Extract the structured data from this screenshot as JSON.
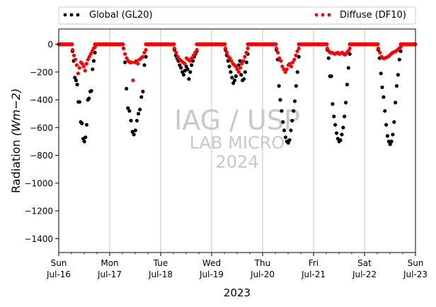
{
  "chart_data": {
    "type": "scatter",
    "xlabel": "2023",
    "ylabel": "Radiation",
    "ylabel_unit": "(Wm−2)",
    "xlim": [
      0,
      7
    ],
    "ylim": [
      -1500,
      110
    ],
    "yticks": [
      0,
      -200,
      -400,
      -600,
      -800,
      -1000,
      -1200,
      -1400
    ],
    "xticks": [
      {
        "x": 0,
        "day": "Sun",
        "date": "Jul-16"
      },
      {
        "x": 1,
        "day": "Mon",
        "date": "Jul-17"
      },
      {
        "x": 2,
        "day": "Tue",
        "date": "Jul-18"
      },
      {
        "x": 3,
        "day": "Wed",
        "date": "Jul-19"
      },
      {
        "x": 4,
        "day": "Thu",
        "date": "Jul-20"
      },
      {
        "x": 5,
        "day": "Fri",
        "date": "Jul-21"
      },
      {
        "x": 6,
        "day": "Sat",
        "date": "Jul-22"
      },
      {
        "x": 7,
        "day": "Sun",
        "date": "Jul-23"
      }
    ],
    "grid": "x",
    "legend": "top",
    "watermark": [
      "IAG / USP",
      "LAB MICRO",
      "2024"
    ],
    "series": [
      {
        "name": "Global (GL20)",
        "color": "#000000",
        "days": [
          {
            "start": 0.27,
            "end": 0.71,
            "values": [
              -50,
              -120,
              -240,
              -260,
              -290,
              -415,
              -415,
              -560,
              -570,
              -680,
              -700,
              -670,
              -580,
              -400,
              -390,
              -340,
              -335,
              -180,
              -120,
              -60
            ]
          },
          {
            "start": 1.27,
            "end": 1.71,
            "values": [
              -30,
              -130,
              -320,
              -460,
              -480,
              -550,
              -630,
              -650,
              -620,
              -550,
              -500,
              -470,
              -380,
              -340,
              -150,
              -90
            ]
          },
          {
            "start": 2.27,
            "end": 2.71,
            "values": [
              -40,
              -80,
              -100,
              -120,
              -150,
              -170,
              -200,
              -220,
              -190,
              -160,
              -180,
              -250,
              -200,
              -150,
              -120,
              -90,
              -70,
              -50
            ]
          },
          {
            "start": 3.27,
            "end": 3.71,
            "values": [
              -40,
              -80,
              -120,
              -160,
              -200,
              -240,
              -280,
              -260,
              -230,
              -180,
              -150,
              -120,
              -220,
              -260,
              -250,
              -200,
              -130,
              -70
            ]
          },
          {
            "start": 4.27,
            "end": 4.71,
            "values": [
              -40,
              -110,
              -300,
              -400,
              -480,
              -560,
              -620,
              -670,
              -700,
              -710,
              -690,
              -620,
              -550,
              -480,
              -410,
              -300,
              -200,
              -90
            ]
          },
          {
            "start": 5.27,
            "end": 5.71,
            "values": [
              -40,
              -100,
              -230,
              -230,
              -430,
              -520,
              -580,
              -640,
              -680,
              -700,
              -690,
              -650,
              -600,
              -520,
              -420,
              -290,
              -170,
              -70
            ]
          },
          {
            "start": 6.27,
            "end": 6.71,
            "values": [
              -40,
              -100,
              -210,
              -310,
              -380,
              -480,
              -580,
              -660,
              -700,
              -720,
              -700,
              -650,
              -560,
              -420,
              -300,
              -220,
              -110,
              -50
            ]
          }
        ]
      },
      {
        "name": "Diffuse (DF10)",
        "color": "#ff0000",
        "days": [
          {
            "start": 0.27,
            "end": 0.71,
            "values": [
              -40,
              -80,
              -110,
              -150,
              -210,
              -170,
              -130,
              -140,
              -160,
              -190,
              -140,
              -110,
              -90,
              -70,
              -50,
              -30,
              -20
            ]
          },
          {
            "start": 1.27,
            "end": 1.71,
            "values": [
              -30,
              -70,
              -100,
              -120,
              -130,
              -130,
              -260,
              -130,
              -120,
              -140,
              -110,
              -100,
              -90,
              -60,
              -40
            ]
          },
          {
            "start": 2.27,
            "end": 2.71,
            "values": [
              -30,
              -60,
              -90,
              -110,
              -120,
              -130,
              -140,
              -100,
              -110,
              -120,
              -100,
              -80,
              -60,
              -40
            ]
          },
          {
            "start": 3.27,
            "end": 3.71,
            "values": [
              -30,
              -60,
              -90,
              -100,
              -120,
              -140,
              -150,
              -160,
              -180,
              -200,
              -170,
              -140,
              -120,
              -90,
              -60,
              -30
            ]
          },
          {
            "start": 4.27,
            "end": 4.71,
            "values": [
              -30,
              -60,
              -100,
              -120,
              -160,
              -180,
              -200,
              -180,
              -150,
              -140,
              -160,
              -130,
              -110,
              -80,
              -50,
              -30
            ]
          },
          {
            "start": 5.27,
            "end": 5.71,
            "values": [
              -30,
              -50,
              -60,
              -60,
              -65,
              -70,
              -65,
              -60,
              -70,
              -65,
              -60,
              -70,
              -75,
              -60,
              -50,
              -30
            ]
          },
          {
            "start": 6.27,
            "end": 6.71,
            "values": [
              -30,
              -60,
              -90,
              -100,
              -100,
              -95,
              -90,
              -80,
              -70,
              -60,
              -55,
              -50,
              -40,
              -30,
              -20
            ]
          }
        ]
      }
    ]
  }
}
